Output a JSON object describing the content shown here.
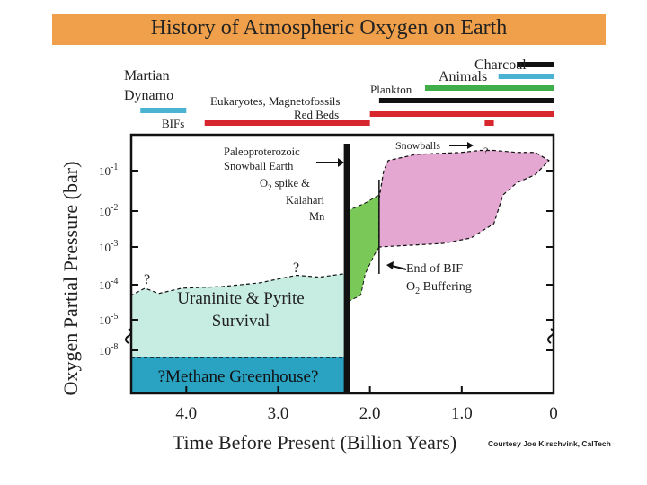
{
  "title": "History of Atmospheric Oxygen on Earth",
  "credit": "Courtesy Joe Kirschvink, CalTech",
  "colors": {
    "banner": "#f0a04a",
    "uraninite_field": "#c7ece1",
    "methane_field": "#2aa2c1",
    "oxygen_spike_field": "#7ac857",
    "post_bif_field": "#e3a7d1",
    "bar_black": "#111111",
    "bar_blue": "#4ab3d2",
    "bar_green": "#3fae49",
    "bar_red": "#d7262e"
  },
  "chart_data": {
    "type": "area",
    "xlabel": "Time Before Present (Billion Years)",
    "ylabel": "Oxygen Partial Pressure (bar)",
    "x_range": [
      4.6,
      0
    ],
    "x_reversed": true,
    "x_ticks": [
      {
        "value": 4.0,
        "label": "4.0"
      },
      {
        "value": 3.0,
        "label": "3.0"
      },
      {
        "value": 2.0,
        "label": "2.0"
      },
      {
        "value": 1.0,
        "label": "1.0"
      },
      {
        "value": 0,
        "label": "0"
      }
    ],
    "y_scale": "log",
    "y_ticks": [
      {
        "value": -1,
        "base": "10",
        "exp": "-1"
      },
      {
        "value": -2,
        "base": "10",
        "exp": "-2"
      },
      {
        "value": -3,
        "base": "10",
        "exp": "-3"
      },
      {
        "value": -4,
        "base": "10",
        "exp": "-4"
      },
      {
        "value": -5,
        "base": "10",
        "exp": "-5"
      },
      {
        "value": -8,
        "base": "10",
        "exp": "-8"
      }
    ],
    "y_break_between": [
      -8,
      -5
    ],
    "boundary_lines": [
      {
        "name": "Paleoproterozoic Snowball Earth",
        "x": 2.25
      },
      {
        "name": "End of BIF",
        "x": 1.9
      }
    ],
    "regions": [
      {
        "name": "Uraninite & Pyrite Survival",
        "lines": [
          "Uraninite & Pyrite",
          "Survival"
        ],
        "color": "#c7ece1",
        "top": [
          [
            4.6,
            -4.3
          ],
          [
            4.45,
            -4.1
          ],
          [
            4.3,
            -4.25
          ],
          [
            4.05,
            -4.1
          ],
          [
            3.6,
            -4.05
          ],
          [
            3.2,
            -3.95
          ],
          [
            2.8,
            -3.75
          ],
          [
            2.55,
            -3.8
          ],
          [
            2.25,
            -3.7
          ]
        ]
      },
      {
        "name": "?Methane Greenhouse?",
        "lines": [
          "?Methane Greenhouse?"
        ],
        "color": "#2aa2c1"
      },
      {
        "name": "Oxygen spike",
        "color": "#7ac857",
        "top": [
          [
            2.25,
            -2.0
          ],
          [
            2.05,
            -1.8
          ],
          [
            1.9,
            -1.6
          ]
        ],
        "bottom": [
          [
            2.25,
            -4.5
          ],
          [
            2.1,
            -4.3
          ],
          [
            2.05,
            -3.7
          ],
          [
            1.95,
            -3.2
          ],
          [
            1.9,
            -3.0
          ]
        ]
      },
      {
        "name": "Post-BIF oxygen",
        "color": "#e3a7d1",
        "top": [
          [
            1.9,
            -1.7
          ],
          [
            1.85,
            -1.0
          ],
          [
            1.8,
            -0.75
          ],
          [
            1.5,
            -0.6
          ],
          [
            1.0,
            -0.55
          ],
          [
            0.8,
            -0.5
          ],
          [
            0.65,
            -0.5
          ],
          [
            0.4,
            -0.55
          ],
          [
            0.2,
            -0.55
          ],
          [
            0.05,
            -0.75
          ]
        ],
        "bottom": [
          [
            1.9,
            -3.0
          ],
          [
            1.2,
            -2.9
          ],
          [
            0.9,
            -2.75
          ],
          [
            0.65,
            -2.35
          ],
          [
            0.55,
            -1.6
          ],
          [
            0.4,
            -1.3
          ],
          [
            0.2,
            -1.1
          ],
          [
            0.05,
            -0.75
          ]
        ]
      }
    ],
    "time_bars": [
      {
        "label": "Charcoal",
        "color": "#111111",
        "segments": [
          [
            0.4,
            0
          ]
        ]
      },
      {
        "label": "Animals",
        "color": "#4ab3d2",
        "segments": [
          [
            0.6,
            0
          ]
        ]
      },
      {
        "label": "Plankton",
        "color": "#3fae49",
        "segments": [
          [
            1.4,
            0
          ]
        ]
      },
      {
        "label": "Eukaryotes, Magnetofossils",
        "color": "#111111",
        "segments": [
          [
            1.9,
            0
          ]
        ]
      },
      {
        "label": "Red Beds",
        "color": "#d7262e",
        "segments": [
          [
            2.0,
            0
          ]
        ]
      },
      {
        "label": "BIFs",
        "color": "#d7262e",
        "segments": [
          [
            3.8,
            2.0
          ],
          [
            0.75,
            0.65
          ]
        ]
      },
      {
        "label": "Martian Dynamo",
        "color": "#4ab3d2",
        "segments": [
          [
            4.5,
            4.0
          ]
        ]
      }
    ],
    "annotations": [
      {
        "name": "snowball-earth-note",
        "lines": [
          "Paleoproterozoic",
          "Snowball Earth"
        ]
      },
      {
        "name": "o2-spike-note",
        "lines": [
          "O2 spike &",
          "Kalahari",
          "Mn"
        ]
      },
      {
        "name": "snowballs-note",
        "lines": [
          "Snowballs"
        ]
      },
      {
        "name": "end-of-bif-note",
        "lines": [
          "End of BIF",
          "O2 Buffering"
        ]
      },
      {
        "name": "question-mark-1",
        "lines": [
          "?"
        ]
      },
      {
        "name": "question-mark-2",
        "lines": [
          "?"
        ]
      },
      {
        "name": "question-mark-3",
        "lines": [
          "?"
        ]
      }
    ]
  }
}
